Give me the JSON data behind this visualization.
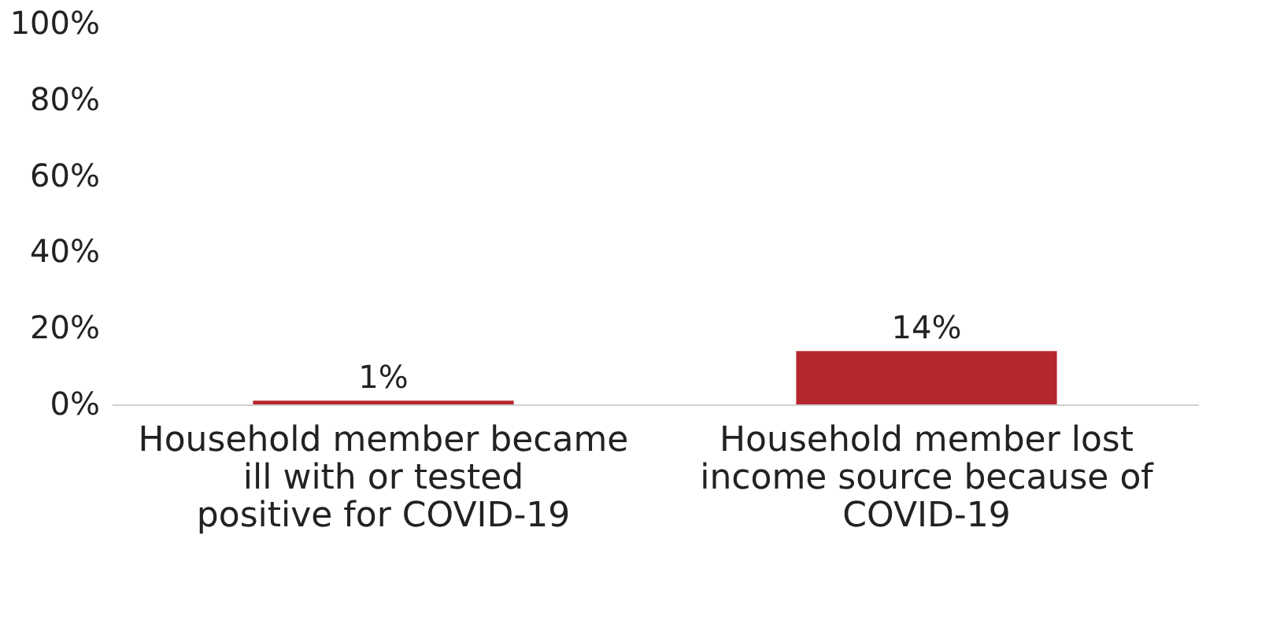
{
  "chart_data": {
    "type": "bar",
    "categories": [
      "Household member became ill with or tested positive for COVID-19",
      "Household member lost income source because of COVID-19"
    ],
    "values": [
      1,
      14
    ],
    "color": "#b5272d",
    "value_labels": [
      "1%",
      "14%"
    ],
    "ylim": [
      0,
      100
    ],
    "yticks": [
      {
        "value": 0,
        "label": "0%"
      },
      {
        "value": 20,
        "label": "20%"
      },
      {
        "value": 40,
        "label": "40%"
      },
      {
        "value": 60,
        "label": "60%"
      },
      {
        "value": 80,
        "label": "80%"
      },
      {
        "value": 100,
        "label": "100%"
      }
    ],
    "grid": false
  }
}
